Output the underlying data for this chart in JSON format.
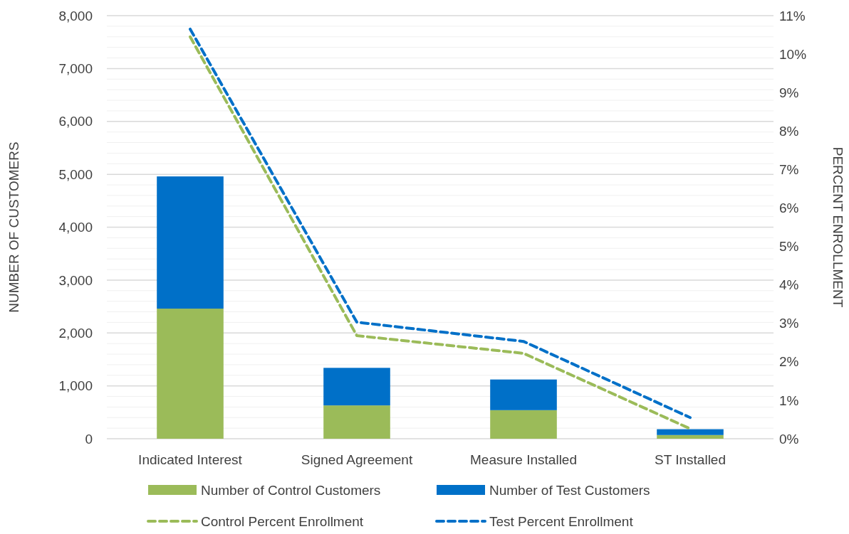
{
  "chart_data": {
    "type": "bar",
    "stacked": true,
    "categories": [
      "Indicated Interest",
      "Signed Agreement",
      "Measure Installed",
      "ST Installed"
    ],
    "series": [
      {
        "name": "Number of Control Customers",
        "color": "#9bbb59",
        "values": [
          2460,
          630,
          540,
          70
        ]
      },
      {
        "name": "Number of Test Customers",
        "color": "#0070c8",
        "values": [
          2500,
          710,
          580,
          110
        ]
      },
      {
        "name": "Control Percent Enrollment",
        "type": "line",
        "axis": "y2",
        "line_style": "dashed",
        "color": "#9bbb59",
        "values": [
          10.45,
          2.68,
          2.22,
          0.26
        ]
      },
      {
        "name": "Test Percent Enrollment",
        "type": "line",
        "axis": "y2",
        "line_style": "dashed",
        "color": "#0070c8",
        "values": [
          10.65,
          3.03,
          2.53,
          0.55
        ]
      }
    ],
    "ylabel": "NUMBER OF  CUSTOMERS",
    "y2label": "PERCENT ENROLLMENT",
    "ylim": [
      0,
      8000
    ],
    "yticks": [
      {
        "value": 0,
        "label": "0"
      },
      {
        "value": 200,
        "label": null
      },
      {
        "value": 400,
        "label": null
      },
      {
        "value": 600,
        "label": null
      },
      {
        "value": 800,
        "label": null
      },
      {
        "value": 1000,
        "label": "1,000"
      },
      {
        "value": 1200,
        "label": null
      },
      {
        "value": 1400,
        "label": null
      },
      {
        "value": 1600,
        "label": null
      },
      {
        "value": 1800,
        "label": null
      },
      {
        "value": 2000,
        "label": "2,000"
      },
      {
        "value": 2200,
        "label": null
      },
      {
        "value": 2400,
        "label": null
      },
      {
        "value": 2600,
        "label": null
      },
      {
        "value": 2800,
        "label": null
      },
      {
        "value": 3000,
        "label": "3,000"
      },
      {
        "value": 3200,
        "label": null
      },
      {
        "value": 3400,
        "label": null
      },
      {
        "value": 3600,
        "label": null
      },
      {
        "value": 3800,
        "label": null
      },
      {
        "value": 4000,
        "label": "4,000"
      },
      {
        "value": 4200,
        "label": null
      },
      {
        "value": 4400,
        "label": null
      },
      {
        "value": 4600,
        "label": null
      },
      {
        "value": 4800,
        "label": null
      },
      {
        "value": 5000,
        "label": "5,000"
      },
      {
        "value": 5200,
        "label": null
      },
      {
        "value": 5400,
        "label": null
      },
      {
        "value": 5600,
        "label": null
      },
      {
        "value": 5800,
        "label": null
      },
      {
        "value": 6000,
        "label": "6,000"
      },
      {
        "value": 6200,
        "label": null
      },
      {
        "value": 6400,
        "label": null
      },
      {
        "value": 6600,
        "label": null
      },
      {
        "value": 6800,
        "label": null
      },
      {
        "value": 7000,
        "label": "7,000"
      },
      {
        "value": 7200,
        "label": null
      },
      {
        "value": 7400,
        "label": null
      },
      {
        "value": 7600,
        "label": null
      },
      {
        "value": 7800,
        "label": null
      },
      {
        "value": 8000,
        "label": "8,000"
      }
    ],
    "y2lim": [
      0,
      11
    ],
    "y2ticks": [
      {
        "value": 0,
        "label": "0%"
      },
      {
        "value": 1,
        "label": "1%"
      },
      {
        "value": 2,
        "label": "2%"
      },
      {
        "value": 3,
        "label": "3%"
      },
      {
        "value": 4,
        "label": "4%"
      },
      {
        "value": 5,
        "label": "5%"
      },
      {
        "value": 6,
        "label": "6%"
      },
      {
        "value": 7,
        "label": "7%"
      },
      {
        "value": 8,
        "label": "8%"
      },
      {
        "value": 9,
        "label": "9%"
      },
      {
        "value": 10,
        "label": "10%"
      },
      {
        "value": 11,
        "label": "11%"
      }
    ],
    "grid": "y",
    "legend": "bottom"
  }
}
